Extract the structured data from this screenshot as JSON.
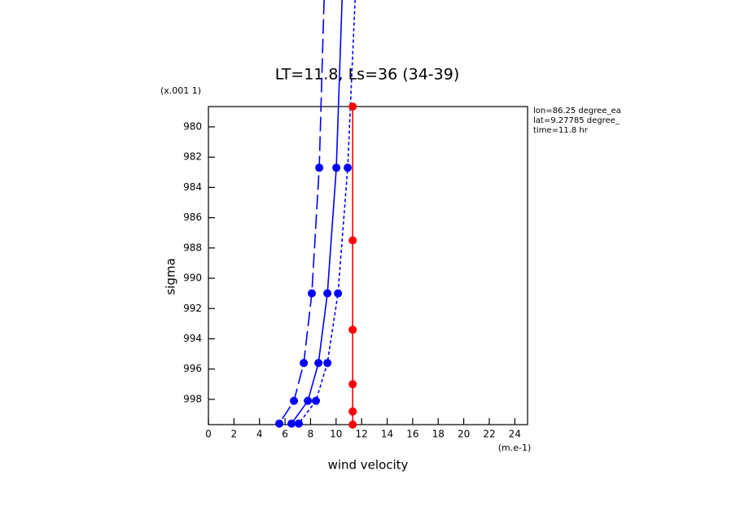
{
  "chart_data": {
    "type": "line",
    "title": "LT=11.8, Ls=36 (34-39)",
    "x_label": "wind velocity",
    "y_label": "sigma",
    "x_units": "(m.e-1)",
    "y_multiplier": "(x.001 1)",
    "annotations": [
      "lon=86.25 degree_ea",
      "lat=9.27785 degree_",
      "time=11.8 hr"
    ],
    "xlim": [
      0,
      25
    ],
    "xticks": [
      0,
      2,
      4,
      6,
      8,
      10,
      12,
      14,
      16,
      18,
      20,
      22,
      24
    ],
    "ylim": [
      999.67,
      978.66
    ],
    "yticks": [
      980,
      982,
      984,
      986,
      988,
      990,
      992,
      994,
      996,
      998
    ],
    "series": [
      {
        "color": "#0000ff",
        "dash": "long",
        "x": [
          9.06,
          8.68,
          8.1,
          7.47,
          6.7,
          5.55
        ],
        "y": [
          971.6,
          982.7,
          991.0,
          995.6,
          998.1,
          999.6
        ]
      },
      {
        "color": "#0000ff",
        "dash": "solid",
        "x": [
          10.47,
          10.02,
          9.32,
          8.62,
          7.79,
          6.51
        ],
        "y": [
          971.6,
          982.7,
          991.0,
          995.6,
          998.1,
          999.6
        ]
      },
      {
        "color": "#0000ff",
        "dash": "short",
        "x": [
          11.49,
          10.91,
          10.15,
          9.32,
          8.42,
          7.08
        ],
        "y": [
          971.6,
          982.7,
          991.0,
          995.6,
          998.1,
          999.6
        ]
      },
      {
        "color": "#ff0000",
        "dash": "solid",
        "x": [
          11.3,
          11.3,
          11.3,
          11.3,
          11.3,
          11.3
        ],
        "y": [
          978.66,
          987.5,
          993.4,
          997.0,
          998.8,
          999.67
        ]
      }
    ]
  }
}
